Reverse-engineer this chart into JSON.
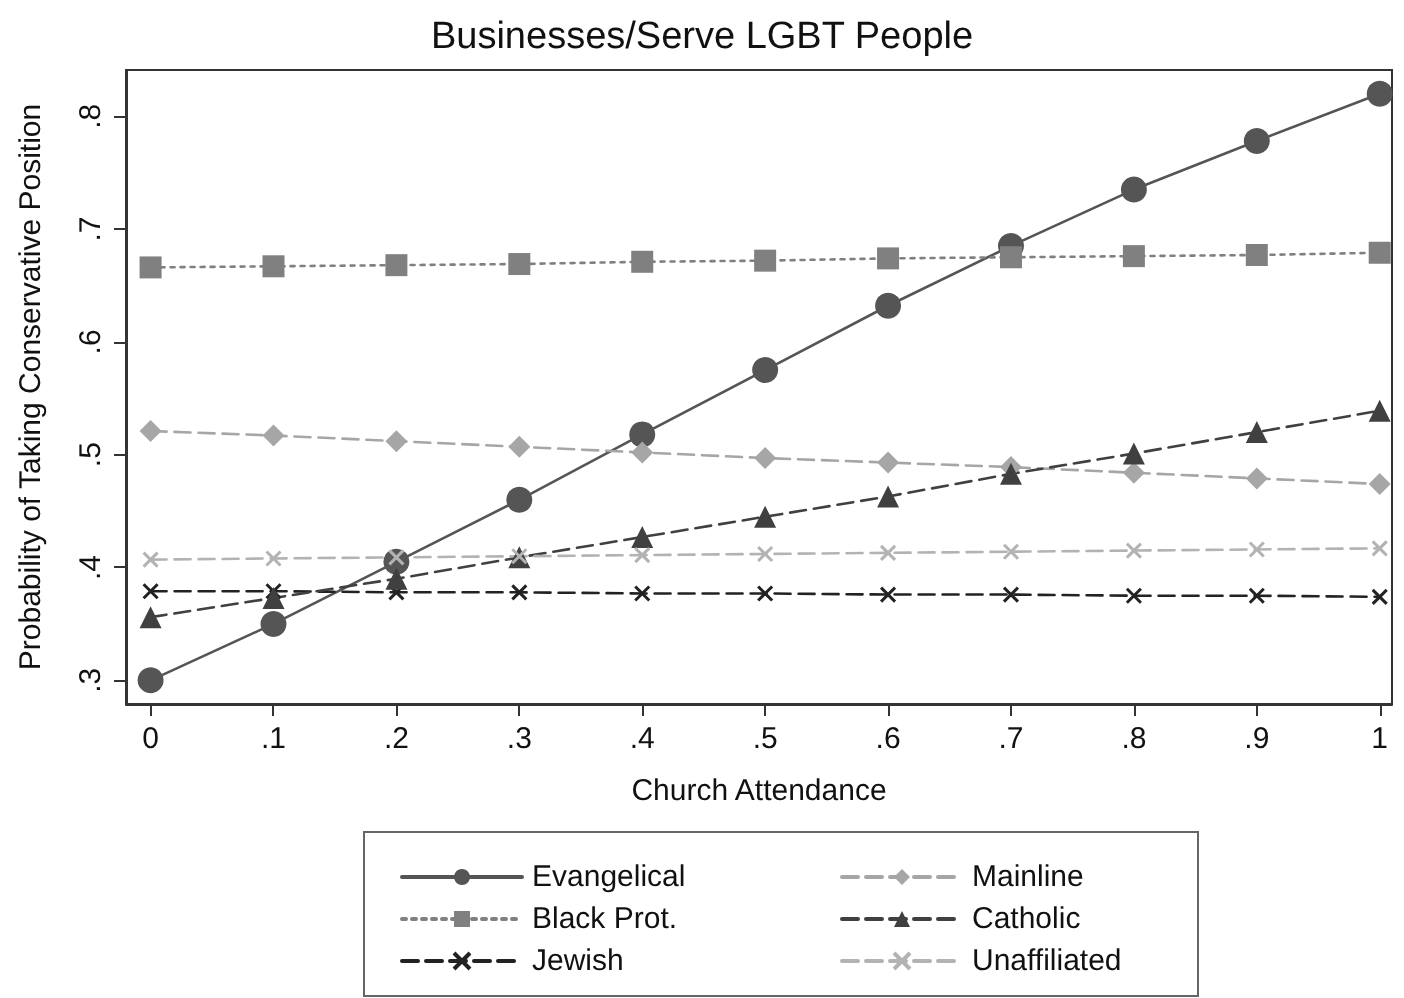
{
  "chart_data": {
    "type": "line",
    "title": "Businesses/Serve LGBT People",
    "xlabel": "Church Attendance",
    "ylabel": "Probability of Taking Conservative Position",
    "x": [
      0,
      0.1,
      0.2,
      0.3,
      0.4,
      0.5,
      0.6,
      0.7,
      0.8,
      0.9,
      1
    ],
    "xlim": [
      -0.02,
      1.01
    ],
    "xticks": [
      0,
      {
        "value": 0.1,
        "label": ".1"
      },
      {
        "value": 0.2,
        "label": ".2"
      },
      {
        "value": 0.3,
        "label": ".3"
      },
      {
        "value": 0.4,
        "label": ".4"
      },
      {
        "value": 0.5,
        "label": ".5"
      },
      {
        "value": 0.6,
        "label": ".6"
      },
      {
        "value": 0.7,
        "label": ".7"
      },
      {
        "value": 0.8,
        "label": ".8"
      },
      {
        "value": 0.9,
        "label": ".9"
      },
      1
    ],
    "ylim": [
      0.279,
      0.841
    ],
    "yticks": [
      {
        "value": 0.3,
        "label": ".3"
      },
      {
        "value": 0.4,
        "label": ".4"
      },
      {
        "value": 0.5,
        "label": ".5"
      },
      {
        "value": 0.6,
        "label": ".6"
      },
      {
        "value": 0.7,
        "label": ".7"
      },
      {
        "value": 0.8,
        "label": ".8"
      }
    ],
    "grid": false,
    "legend": "bottom",
    "series": [
      {
        "name": "Evangelical",
        "color": "#555555",
        "marker": "circle",
        "line_style": "solid",
        "values": [
          0.3,
          0.35,
          0.405,
          0.46,
          0.518,
          0.575,
          0.632,
          0.685,
          0.735,
          0.778,
          0.82
        ]
      },
      {
        "name": "Black Prot.",
        "color": "#808080",
        "marker": "square",
        "line_style": "dotted",
        "values": [
          0.666,
          0.667,
          0.668,
          0.669,
          0.671,
          0.672,
          0.674,
          0.675,
          0.676,
          0.677,
          0.679
        ]
      },
      {
        "name": "Jewish",
        "color": "#222222",
        "marker": "cross",
        "line_style": "dashed",
        "values": [
          0.379,
          0.379,
          0.378,
          0.378,
          0.377,
          0.377,
          0.376,
          0.376,
          0.375,
          0.375,
          0.374
        ]
      },
      {
        "name": "Mainline",
        "color": "#a6a6a6",
        "marker": "diamond",
        "line_style": "dashed",
        "values": [
          0.521,
          0.517,
          0.512,
          0.507,
          0.502,
          0.497,
          0.493,
          0.489,
          0.484,
          0.479,
          0.474
        ]
      },
      {
        "name": "Catholic",
        "color": "#404040",
        "marker": "triangle",
        "line_style": "dashed",
        "values": [
          0.356,
          0.373,
          0.39,
          0.409,
          0.427,
          0.445,
          0.463,
          0.483,
          0.501,
          0.52,
          0.539
        ]
      },
      {
        "name": "Unaffiliated",
        "color": "#b3b3b3",
        "marker": "cross",
        "line_style": "dashed",
        "values": [
          0.407,
          0.408,
          0.409,
          0.41,
          0.411,
          0.412,
          0.413,
          0.414,
          0.415,
          0.416,
          0.417
        ]
      }
    ]
  }
}
